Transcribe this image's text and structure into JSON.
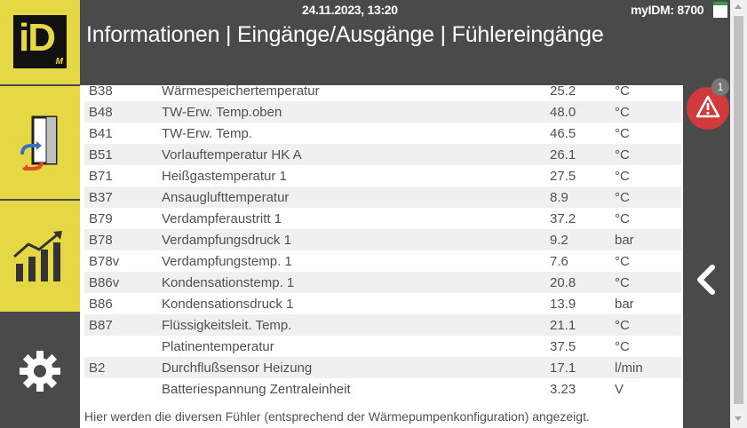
{
  "header": {
    "datetime": "24.11.2023, 13:20",
    "device": "myIDM: 8700",
    "title": "Informationen | Eingänge/Ausgänge | Fühlereingänge"
  },
  "logo": {
    "main": "iD",
    "sub": "M"
  },
  "sidebar": {
    "items": [
      {
        "icon": "heat-pump-cycle-icon"
      },
      {
        "icon": "statistics-chart-icon"
      },
      {
        "icon": "gear-icon"
      }
    ]
  },
  "sensors": [
    {
      "id": "B38",
      "name": "Wärmespeichertemperatur",
      "value": "25.2",
      "unit": "°C"
    },
    {
      "id": "B48",
      "name": "TW-Erw. Temp.oben",
      "value": "48.0",
      "unit": "°C"
    },
    {
      "id": "B41",
      "name": "TW-Erw. Temp.",
      "value": "46.5",
      "unit": "°C"
    },
    {
      "id": "B51",
      "name": "Vorlauftemperatur HK A",
      "value": "26.1",
      "unit": "°C"
    },
    {
      "id": "B71",
      "name": "Heißgastemperatur 1",
      "value": "27.5",
      "unit": "°C"
    },
    {
      "id": "B37",
      "name": "Ansauglufttemperatur",
      "value": "8.9",
      "unit": "°C"
    },
    {
      "id": "B79",
      "name": "Verdampferaustritt 1",
      "value": "37.2",
      "unit": "°C"
    },
    {
      "id": "B78",
      "name": "Verdampfungsdruck 1",
      "value": "9.2",
      "unit": "bar"
    },
    {
      "id": "B78v",
      "name": "Verdampfungstemp. 1",
      "value": "7.6",
      "unit": "°C"
    },
    {
      "id": "B86v",
      "name": "Kondensationstemp. 1",
      "value": "20.8",
      "unit": "°C"
    },
    {
      "id": "B86",
      "name": "Kondensationsdruck 1",
      "value": "13.9",
      "unit": "bar"
    },
    {
      "id": "B87",
      "name": "Flüssigkeitsleit. Temp.",
      "value": "21.1",
      "unit": "°C"
    },
    {
      "id": "",
      "name": "Platinentemperatur",
      "value": "37.5",
      "unit": "°C"
    },
    {
      "id": "B2",
      "name": "Durchflußsensor Heizung",
      "value": "17.1",
      "unit": "l/min"
    },
    {
      "id": "",
      "name": "Batteriespannung Zentraleinheit",
      "value": "3.23",
      "unit": "V"
    }
  ],
  "footer_text": "Hier werden die diversen Fühler (entsprechend der Wärmepumpenkonfiguration) angezeigt.",
  "alert": {
    "count": "1",
    "icon": "warning-icon"
  },
  "back_icon": "chevron-left-icon",
  "colors": {
    "brand_yellow": "#e6d844",
    "dark": "#4a4a4a",
    "alert_red": "#d03a3a"
  }
}
